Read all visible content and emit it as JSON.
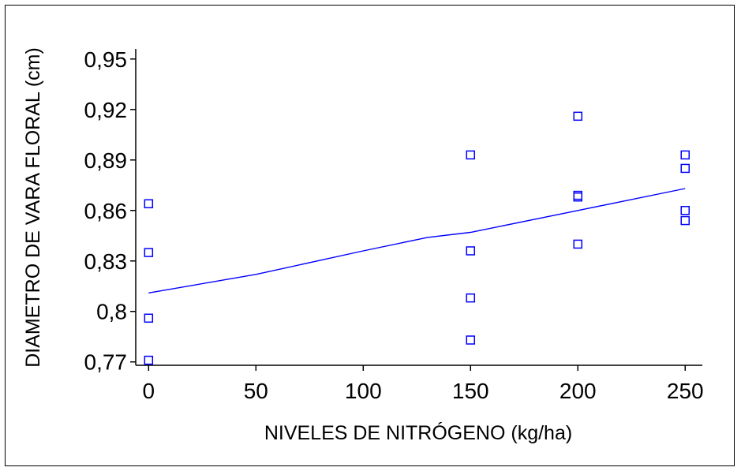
{
  "chart_data": {
    "type": "scatter",
    "xlabel": "NIVELES DE NITRÓGENO (kg/ha)",
    "ylabel": "DIAMETRO DE VARA FLORAL (cm)",
    "x_ticks": [
      "0",
      "50",
      "100",
      "150",
      "200",
      "250"
    ],
    "x_tick_values": [
      0,
      50,
      100,
      150,
      200,
      250
    ],
    "y_ticks": [
      "0,77",
      "0,8",
      "0,83",
      "0,86",
      "0,89",
      "0,92",
      "0,95"
    ],
    "y_tick_values": [
      0.77,
      0.8,
      0.83,
      0.86,
      0.89,
      0.92,
      0.95
    ],
    "xlim": [
      -6,
      258
    ],
    "ylim": [
      0.768,
      0.956
    ],
    "grid": false,
    "points": [
      {
        "x": 0,
        "y": 0.864
      },
      {
        "x": 0,
        "y": 0.835
      },
      {
        "x": 0,
        "y": 0.796
      },
      {
        "x": 0,
        "y": 0.771
      },
      {
        "x": 150,
        "y": 0.893
      },
      {
        "x": 150,
        "y": 0.836
      },
      {
        "x": 150,
        "y": 0.808
      },
      {
        "x": 150,
        "y": 0.783
      },
      {
        "x": 200,
        "y": 0.916
      },
      {
        "x": 200,
        "y": 0.869
      },
      {
        "x": 200,
        "y": 0.868
      },
      {
        "x": 200,
        "y": 0.84
      },
      {
        "x": 250,
        "y": 0.893
      },
      {
        "x": 250,
        "y": 0.885
      },
      {
        "x": 250,
        "y": 0.86
      },
      {
        "x": 250,
        "y": 0.854
      }
    ],
    "fit_line": [
      {
        "x": 0,
        "y": 0.811
      },
      {
        "x": 50,
        "y": 0.822
      },
      {
        "x": 100,
        "y": 0.836
      },
      {
        "x": 130,
        "y": 0.844
      },
      {
        "x": 150,
        "y": 0.847
      },
      {
        "x": 200,
        "y": 0.86
      },
      {
        "x": 250,
        "y": 0.873
      }
    ],
    "colors": {
      "marker": "#0000ff",
      "line": "#0000ff",
      "axis": "#000000"
    }
  }
}
